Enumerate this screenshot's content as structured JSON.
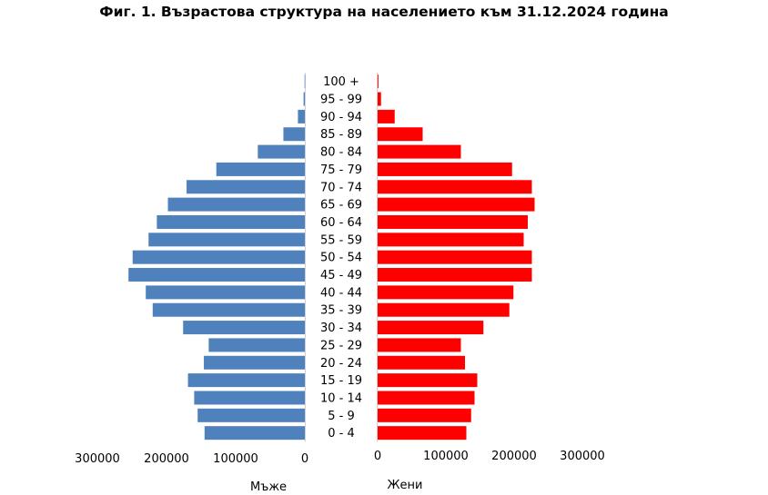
{
  "chart_data": {
    "type": "bar",
    "orientation": "horizontal",
    "title": "Фиг. 1. Възрастова структура на населението към 31.12.2024 година",
    "categories": [
      "100 +",
      "95 - 99",
      "90 - 94",
      "85 - 89",
      "80 - 84",
      "75 - 79",
      "70 - 74",
      "65 - 69",
      "60 - 64",
      "55 - 59",
      "50 - 54",
      "45 - 49",
      "40 - 44",
      "35 - 39",
      "30 - 34",
      "25 - 29",
      "20 - 24",
      "15 - 19",
      "10 - 14",
      "5 - 9",
      "0 - 4"
    ],
    "series": [
      {
        "name": "Мъже",
        "color": "#4F81BD",
        "values": [
          400,
          1800,
          10000,
          31000,
          68000,
          128000,
          171000,
          198000,
          214000,
          226000,
          249000,
          255000,
          230000,
          220000,
          176000,
          139000,
          146000,
          169000,
          160000,
          155000,
          145000
        ]
      },
      {
        "name": "Жени",
        "color": "#FF0000",
        "values": [
          1200,
          5000,
          25000,
          66000,
          122000,
          197000,
          226000,
          230000,
          220000,
          214000,
          226000,
          226000,
          199000,
          193000,
          155000,
          122000,
          128000,
          146000,
          142000,
          137000,
          130000
        ]
      }
    ],
    "left_axis": {
      "ticks": [
        "300000",
        "200000",
        "100000",
        "0"
      ],
      "range": [
        0,
        300000
      ],
      "reversed": true
    },
    "right_axis": {
      "ticks": [
        "0",
        "100000",
        "200000",
        "300000"
      ],
      "range": [
        0,
        300000
      ]
    },
    "xlabel_left": "Мъже",
    "xlabel_right": "Жени",
    "grid": false,
    "legend": "none"
  }
}
